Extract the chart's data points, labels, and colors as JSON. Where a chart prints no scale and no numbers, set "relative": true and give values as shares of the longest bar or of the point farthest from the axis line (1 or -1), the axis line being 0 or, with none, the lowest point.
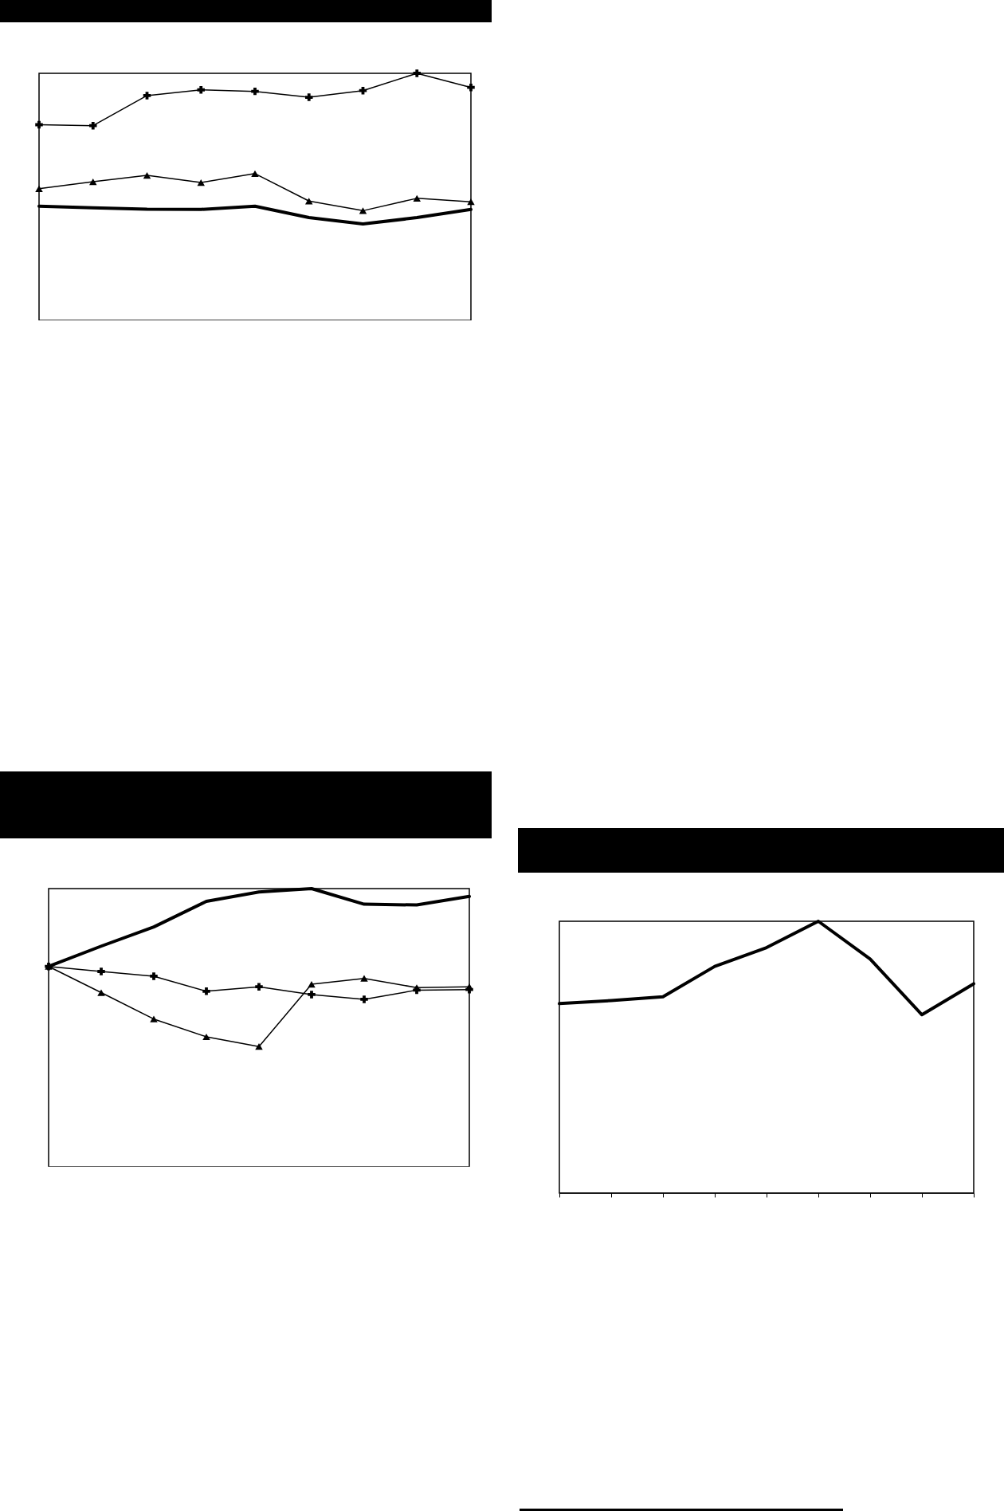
{
  "chart_data": [
    {
      "type": "line",
      "relative": true,
      "categories": [
        null,
        null,
        null,
        null,
        null,
        null,
        null,
        null,
        null
      ],
      "series": [
        {
          "color": "#000000",
          "marker": "cross",
          "line_style": "solid",
          "values": [
            0.792,
            0.788,
            0.91,
            0.933,
            0.927,
            0.903,
            0.93,
            1,
            0.943
          ]
        },
        {
          "color": "#000000",
          "marker": "triangle",
          "line_style": "solid",
          "values": [
            0.533,
            0.561,
            0.587,
            0.558,
            0.594,
            0.483,
            0.444,
            0.494,
            0.48
          ]
        },
        {
          "color": "#000000",
          "marker": "none",
          "line_style": "solid",
          "values": [
            0.462,
            0.456,
            0.45,
            0.449,
            0.462,
            0.416,
            0.39,
            0.416,
            0.449
          ]
        }
      ]
    },
    {
      "type": "line",
      "relative": true,
      "categories": [
        null,
        null,
        null,
        null,
        null,
        null,
        null,
        null,
        null
      ],
      "series": [
        {
          "color": "#000000",
          "marker": "cross",
          "line_style": "solid",
          "values": [
            0.72,
            0.702,
            0.685,
            0.631,
            0.647,
            0.619,
            0.602,
            0.635,
            0.637
          ]
        },
        {
          "color": "#000000",
          "marker": "triangle",
          "line_style": "solid",
          "values": [
            0.72,
            0.626,
            0.531,
            0.467,
            0.432,
            0.656,
            0.677,
            0.644,
            0.647
          ]
        },
        {
          "color": "#000000",
          "marker": "none",
          "line_style": "solid",
          "values": [
            0.72,
            0.793,
            0.862,
            0.954,
            0.988,
            1,
            0.944,
            0.941,
            0.972
          ]
        }
      ]
    },
    {
      "type": "line",
      "relative": true,
      "categories": [
        null,
        null,
        null,
        null,
        null,
        null,
        null,
        null,
        null
      ],
      "series": [
        {
          "color": "#000000",
          "marker": "none",
          "line_style": "solid",
          "values": [
            0.697,
            0.708,
            0.722,
            0.834,
            0.903,
            1,
            0.861,
            0.656,
            0.77
          ]
        }
      ]
    }
  ]
}
